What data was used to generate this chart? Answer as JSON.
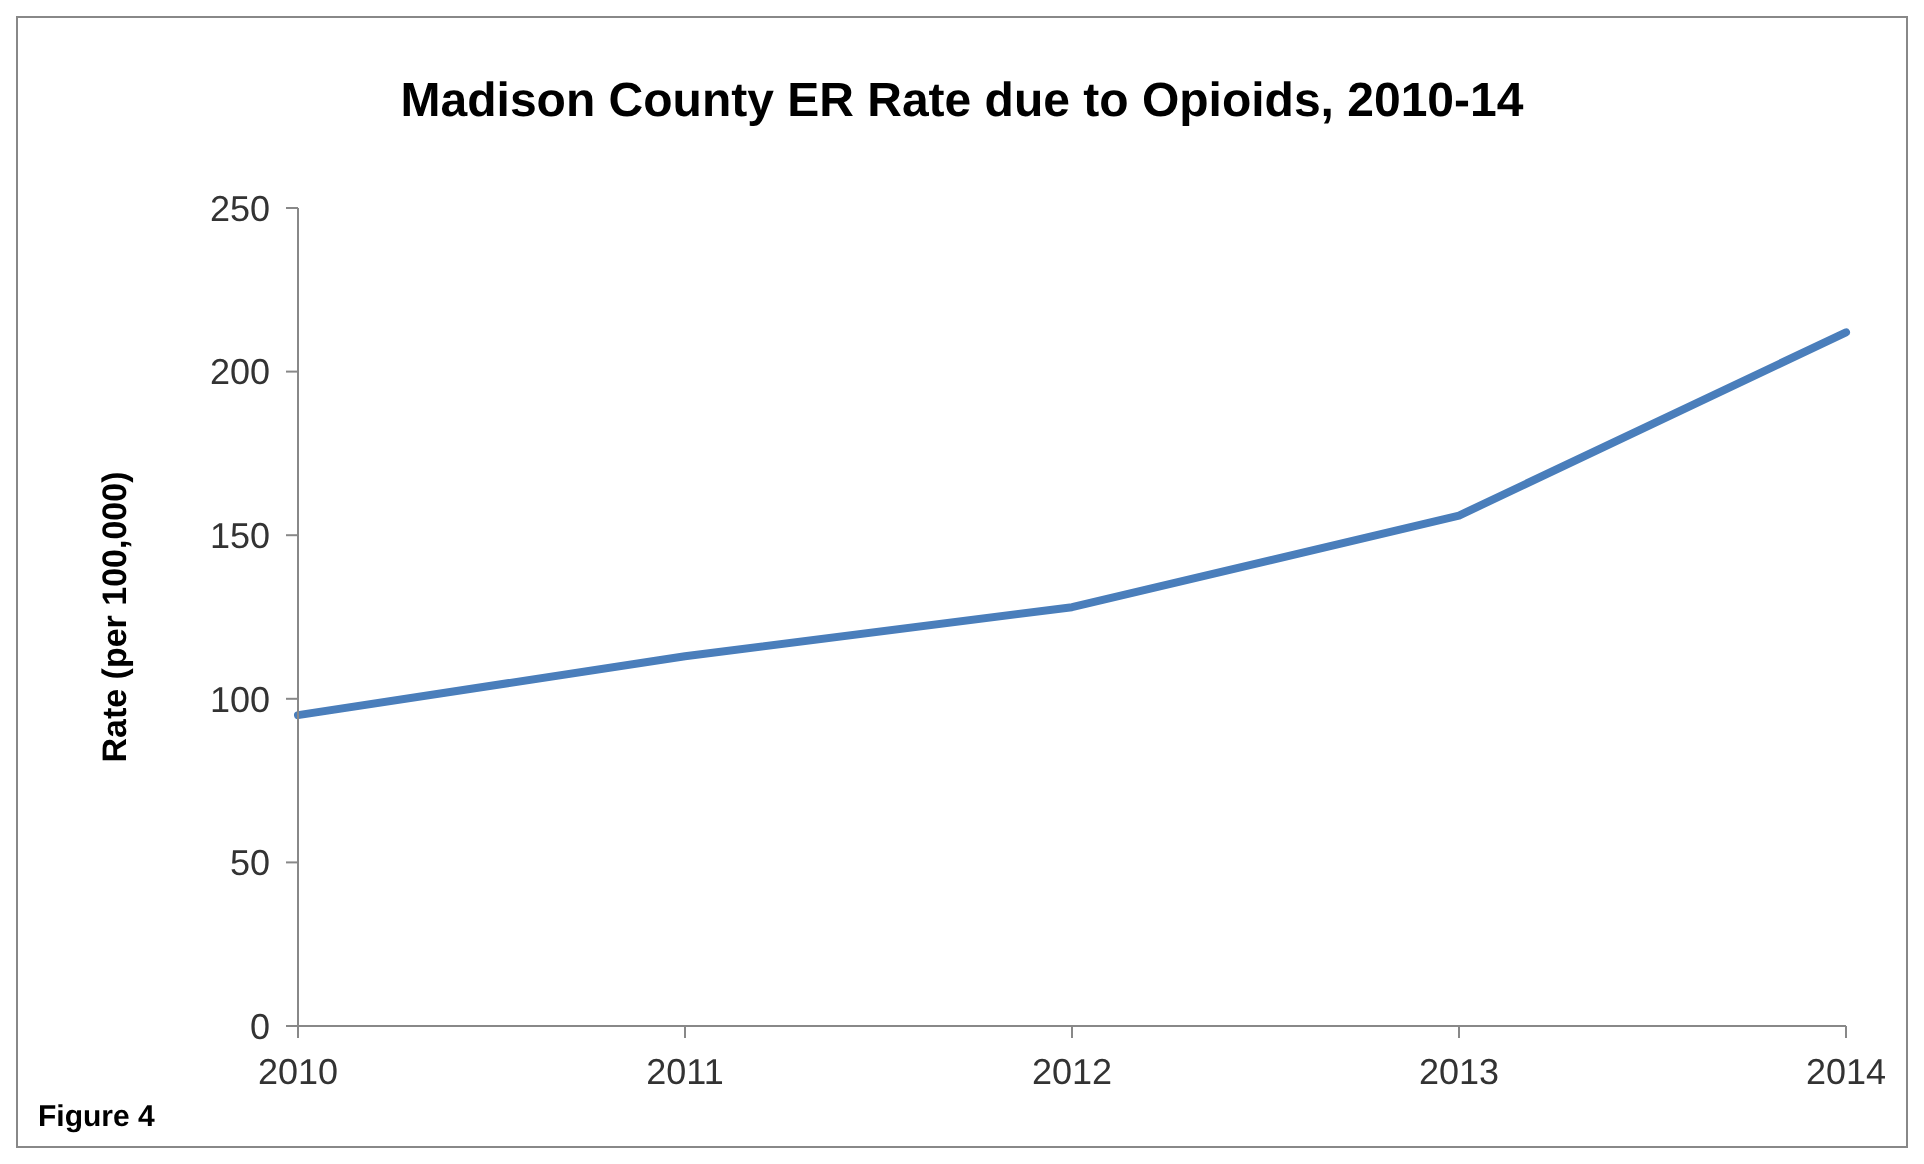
{
  "chart_data": {
    "type": "line",
    "title": "Madison County ER Rate due to Opioids, 2010-14",
    "ylabel": "Rate (per 100,000)",
    "categories": [
      "2010",
      "2011",
      "2012",
      "2013",
      "2014"
    ],
    "series": [
      {
        "color": "#4a7ebb",
        "values": [
          95,
          113,
          128,
          156,
          212
        ]
      }
    ],
    "ylim": [
      0,
      250
    ],
    "yticks": [
      0,
      50,
      100,
      150,
      200,
      250
    ],
    "grid": false,
    "legend": false,
    "marker": "none",
    "line_style": "solid",
    "annotations": [
      "Figure 4"
    ]
  }
}
